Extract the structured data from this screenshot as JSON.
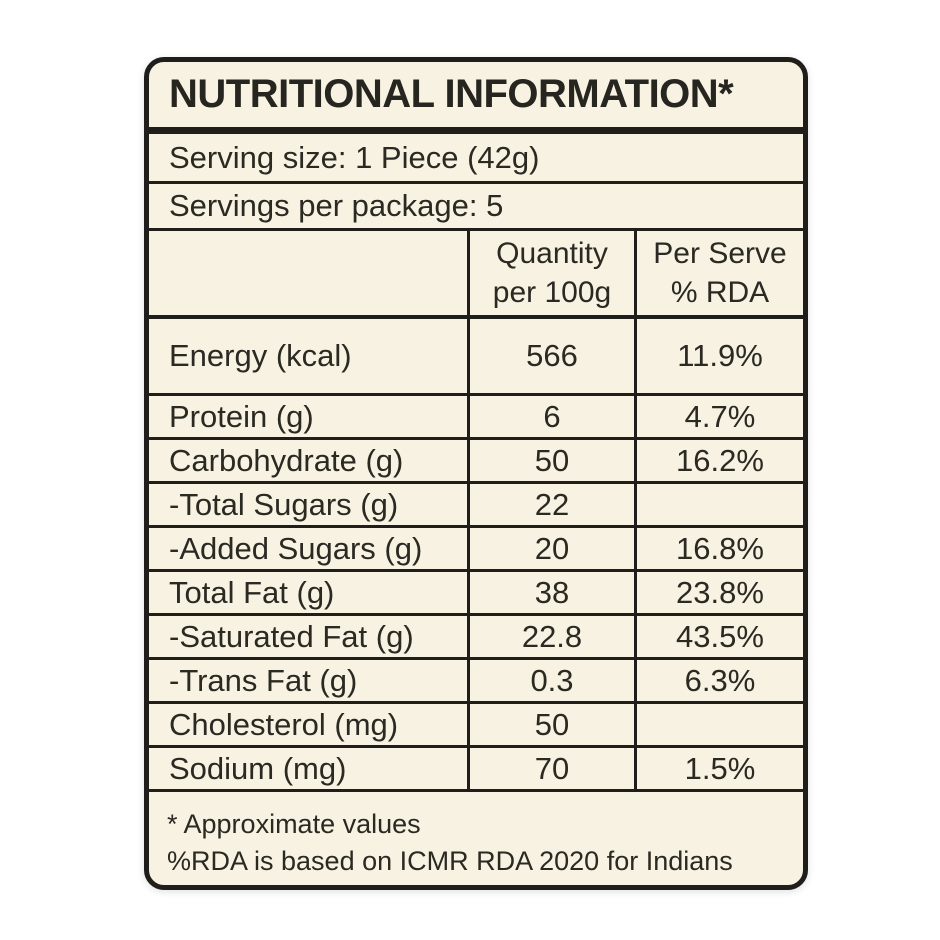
{
  "label": {
    "title": "NUTRITIONAL INFORMATION*",
    "serving_size": "Serving size: 1 Piece (42g)",
    "servings_per_package": "Servings per package: 5",
    "footnotes": [
      "* Approximate values",
      "%RDA is based on ICMR RDA 2020 for Indians"
    ],
    "colors": {
      "background": "#f7f2e1",
      "border": "#1f1e1a",
      "text": "#2a2922",
      "page_background": "#ffffff"
    }
  },
  "table": {
    "header": {
      "blank": "",
      "qty": "Quantity\nper 100g",
      "rda": "Per Serve\n% RDA"
    },
    "rows": [
      {
        "label": "Energy (kcal)",
        "qty": "566",
        "rda": "11.9%"
      },
      {
        "label": "Protein (g)",
        "qty": "6",
        "rda": "4.7%"
      },
      {
        "label": "Carbohydrate (g)",
        "qty": "50",
        "rda": "16.2%"
      },
      {
        "label": "-Total Sugars (g)",
        "qty": "22",
        "rda": ""
      },
      {
        "label": "-Added Sugars (g)",
        "qty": "20",
        "rda": "16.8%"
      },
      {
        "label": "Total Fat (g)",
        "qty": "38",
        "rda": "23.8%"
      },
      {
        "label": "-Saturated Fat (g)",
        "qty": "22.8",
        "rda": "43.5%"
      },
      {
        "label": "-Trans Fat (g)",
        "qty": "0.3",
        "rda": "6.3%"
      },
      {
        "label": "Cholesterol (mg)",
        "qty": "50",
        "rda": ""
      },
      {
        "label": "Sodium (mg)",
        "qty": "70",
        "rda": "1.5%"
      }
    ]
  }
}
